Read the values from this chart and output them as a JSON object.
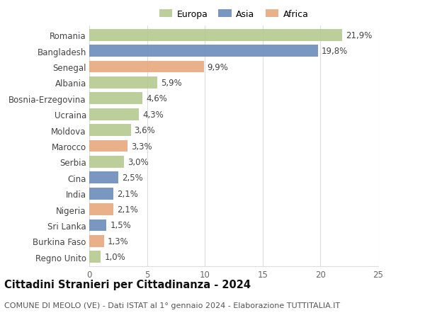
{
  "countries": [
    "Romania",
    "Bangladesh",
    "Senegal",
    "Albania",
    "Bosnia-Erzegovina",
    "Ucraina",
    "Moldova",
    "Marocco",
    "Serbia",
    "Cina",
    "India",
    "Nigeria",
    "Sri Lanka",
    "Burkina Faso",
    "Regno Unito"
  ],
  "values": [
    21.9,
    19.8,
    9.9,
    5.9,
    4.6,
    4.3,
    3.6,
    3.3,
    3.0,
    2.5,
    2.1,
    2.1,
    1.5,
    1.3,
    1.0
  ],
  "continents": [
    "Europa",
    "Asia",
    "Africa",
    "Europa",
    "Europa",
    "Europa",
    "Europa",
    "Africa",
    "Europa",
    "Asia",
    "Asia",
    "Africa",
    "Asia",
    "Africa",
    "Europa"
  ],
  "colors": {
    "Europa": "#b5c98e",
    "Asia": "#6b8cba",
    "Africa": "#e8a87c"
  },
  "xlim": [
    0,
    25
  ],
  "xticks": [
    0,
    5,
    10,
    15,
    20,
    25
  ],
  "title": "Cittadini Stranieri per Cittadinanza - 2024",
  "subtitle": "COMUNE DI MEOLO (VE) - Dati ISTAT al 1° gennaio 2024 - Elaborazione TUTTITALIA.IT",
  "background_color": "#ffffff",
  "plot_background": "#ffffff",
  "grid_color": "#dddddd",
  "bar_height": 0.75,
  "label_fontsize": 8.5,
  "tick_fontsize": 8.5,
  "title_fontsize": 10.5,
  "subtitle_fontsize": 8.0
}
